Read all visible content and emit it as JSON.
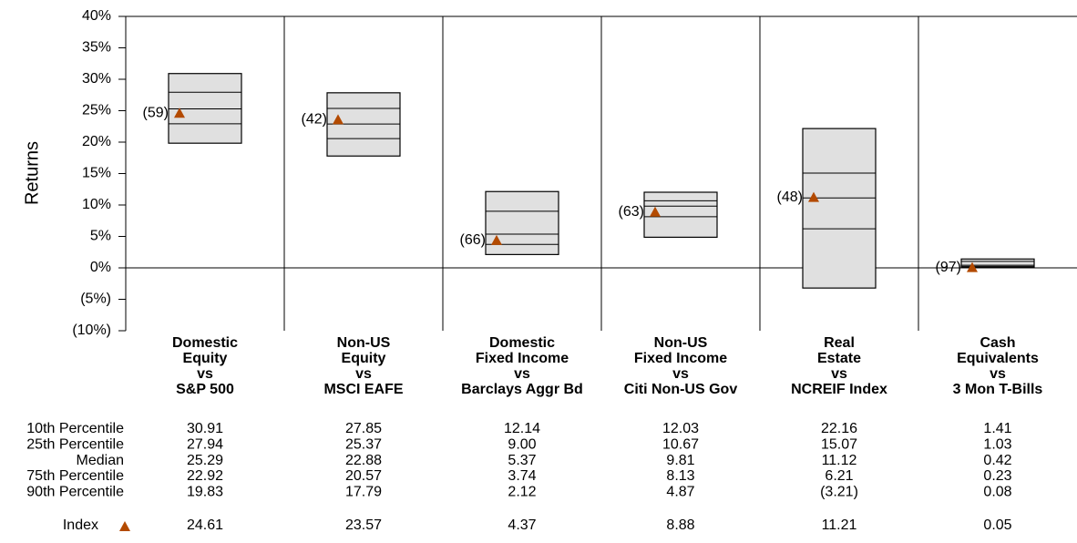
{
  "chart_data": {
    "type": "percentile-box",
    "ylabel": "Returns",
    "categories": [
      [
        "Domestic",
        "Equity",
        "vs",
        "S&P 500"
      ],
      [
        "Non-US",
        "Equity",
        "vs",
        "MSCI EAFE"
      ],
      [
        "Domestic",
        "Fixed Income",
        "vs",
        "Barclays Aggr Bd"
      ],
      [
        "Non-US",
        "Fixed Income",
        "vs",
        "Citi Non-US Gov"
      ],
      [
        "Real",
        "Estate",
        "vs",
        "NCREIF Index"
      ],
      [
        "Cash",
        "Equivalents",
        "vs",
        "3 Mon T-Bills"
      ]
    ],
    "series": [
      {
        "name": "10th Percentile",
        "values": [
          30.91,
          27.85,
          12.14,
          12.03,
          22.16,
          1.41
        ],
        "value_labels": [
          "30.91",
          "27.85",
          "12.14",
          "12.03",
          "22.16",
          "1.41"
        ]
      },
      {
        "name": "25th Percentile",
        "values": [
          27.94,
          25.37,
          9.0,
          10.67,
          15.07,
          1.03
        ],
        "value_labels": [
          "27.94",
          "25.37",
          "9.00",
          "10.67",
          "15.07",
          "1.03"
        ]
      },
      {
        "name": "Median",
        "values": [
          25.29,
          22.88,
          5.37,
          9.81,
          11.12,
          0.42
        ],
        "value_labels": [
          "25.29",
          "22.88",
          "5.37",
          "9.81",
          "11.12",
          "0.42"
        ]
      },
      {
        "name": "75th Percentile",
        "values": [
          22.92,
          20.57,
          3.74,
          8.13,
          6.21,
          0.23
        ],
        "value_labels": [
          "22.92",
          "20.57",
          "3.74",
          "8.13",
          "6.21",
          "0.23"
        ]
      },
      {
        "name": "90th Percentile",
        "values": [
          19.83,
          17.79,
          2.12,
          4.87,
          -3.21,
          0.08
        ],
        "value_labels": [
          "19.83",
          "17.79",
          "2.12",
          "4.87",
          "(3.21)",
          "0.08"
        ]
      }
    ],
    "index": {
      "name": "Index",
      "color": "#b34a00",
      "values": [
        24.61,
        23.57,
        4.37,
        8.88,
        11.21,
        0.05
      ],
      "value_labels": [
        "24.61",
        "23.57",
        "4.37",
        "8.88",
        "11.21",
        "0.05"
      ],
      "rank_labels": [
        "(59)",
        "(42)",
        "(66)",
        "(63)",
        "(48)",
        "(97)"
      ]
    },
    "box_color": "#e0e0e0",
    "negative_color": "#e00000",
    "ylim": [
      -10,
      40
    ],
    "yticks": [
      {
        "value": -10,
        "label": "(10%)"
      },
      {
        "value": -5,
        "label": "(5%)"
      },
      {
        "value": 0,
        "label": "0%"
      },
      {
        "value": 5,
        "label": "5%"
      },
      {
        "value": 10,
        "label": "10%"
      },
      {
        "value": 15,
        "label": "15%"
      },
      {
        "value": 20,
        "label": "20%"
      },
      {
        "value": 25,
        "label": "25%"
      },
      {
        "value": 30,
        "label": "30%"
      },
      {
        "value": 35,
        "label": "35%"
      },
      {
        "value": 40,
        "label": "40%"
      }
    ],
    "zero_line": true
  }
}
